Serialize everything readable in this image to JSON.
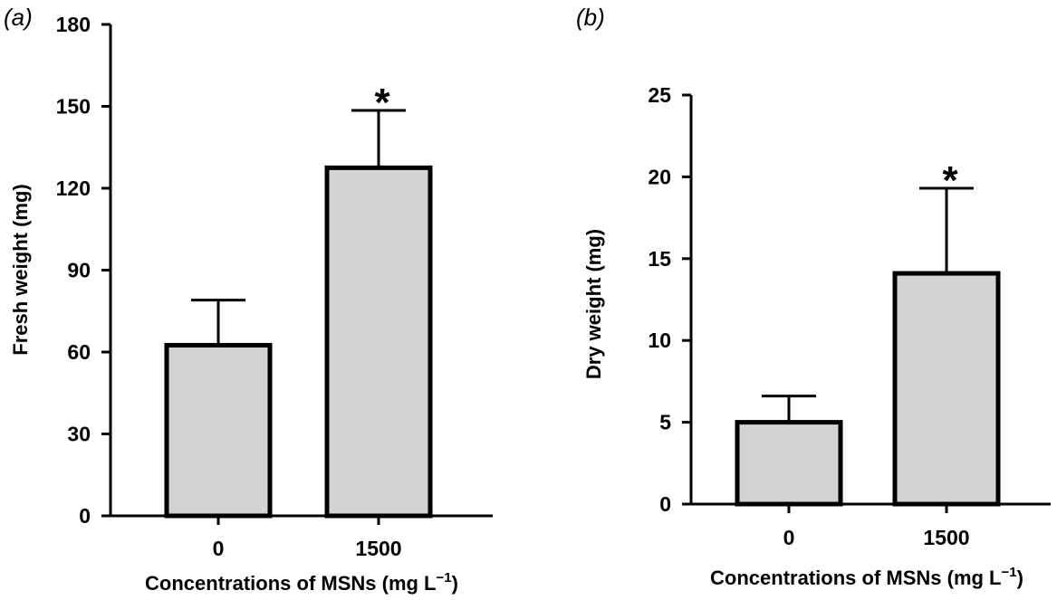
{
  "chart_data": [
    {
      "type": "bar",
      "panel_label": "(a)",
      "categories": [
        "0",
        "1500"
      ],
      "values": [
        62.5,
        127.5
      ],
      "error_bars": [
        16.5,
        21
      ],
      "significance": [
        "",
        "*"
      ],
      "xlabel_main": "Concentrations of MSNs (mg L",
      "xlabel_sup": "−1",
      "xlabel_end": ")",
      "ylabel": "Fresh weight (mg)",
      "ylim": [
        0,
        180
      ],
      "yticks": [
        "0",
        "30",
        "60",
        "90",
        "120",
        "150",
        "180"
      ],
      "bar_color": "#d3d3d3",
      "grid": false
    },
    {
      "type": "bar",
      "panel_label": "(b)",
      "categories": [
        "0",
        "1500"
      ],
      "values": [
        5.0,
        14.1
      ],
      "error_bars": [
        1.6,
        5.2
      ],
      "significance": [
        "",
        "*"
      ],
      "xlabel_main": "Concentrations of MSNs (mg L",
      "xlabel_sup": "−1",
      "xlabel_end": ")",
      "ylabel": "Dry weight (mg)",
      "ylim": [
        0,
        25
      ],
      "yticks": [
        "0",
        "5",
        "10",
        "15",
        "20",
        "25"
      ],
      "bar_color": "#d3d3d3",
      "grid": false
    }
  ]
}
